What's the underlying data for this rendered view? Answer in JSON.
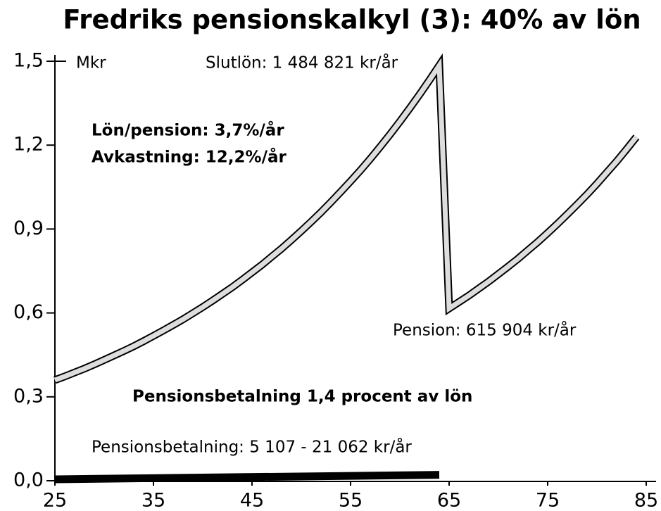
{
  "chart_data": {
    "type": "line",
    "title": "Fredriks pensionskalkyl (3): 40% av lön",
    "y_unit": "Mkr",
    "xlim": [
      25,
      85
    ],
    "xticks": [
      25,
      35,
      45,
      55,
      65,
      75,
      85
    ],
    "ylim": [
      0,
      1.5
    ],
    "yticks": [
      {
        "value": 0,
        "label": "0,0"
      },
      {
        "value": 0.3,
        "label": "0,3"
      },
      {
        "value": 0.6,
        "label": "0,6"
      },
      {
        "value": 0.9,
        "label": "0,9"
      },
      {
        "value": 1.2,
        "label": "1,2"
      },
      {
        "value": 1.5,
        "label": "1,5"
      }
    ],
    "series": [
      {
        "name": "Lön/pension",
        "color": "#dddddd",
        "x": [
          25,
          26,
          27,
          28,
          29,
          30,
          31,
          32,
          33,
          34,
          35,
          36,
          37,
          38,
          39,
          40,
          41,
          42,
          43,
          44,
          45,
          46,
          47,
          48,
          49,
          50,
          51,
          52,
          53,
          54,
          55,
          56,
          57,
          58,
          59,
          60,
          61,
          62,
          63,
          64,
          65,
          66,
          67,
          68,
          69,
          70,
          71,
          72,
          73,
          74,
          75,
          76,
          77,
          78,
          79,
          80,
          81,
          82,
          83,
          84
        ],
        "values": [
          0.36,
          0.373,
          0.387,
          0.401,
          0.416,
          0.432,
          0.448,
          0.464,
          0.481,
          0.499,
          0.518,
          0.537,
          0.557,
          0.577,
          0.599,
          0.621,
          0.644,
          0.668,
          0.692,
          0.718,
          0.745,
          0.772,
          0.801,
          0.83,
          0.861,
          0.893,
          0.926,
          0.96,
          0.996,
          1.033,
          1.071,
          1.11,
          1.151,
          1.194,
          1.238,
          1.284,
          1.332,
          1.381,
          1.432,
          1.485,
          0.616,
          0.639,
          0.662,
          0.687,
          0.712,
          0.739,
          0.766,
          0.794,
          0.824,
          0.854,
          0.886,
          0.919,
          0.953,
          0.988,
          1.024,
          1.062,
          1.102,
          1.142,
          1.185,
          1.229
        ]
      },
      {
        "name": "Pensionsbetalning",
        "color": "#000000",
        "x": [
          25,
          64
        ],
        "values": [
          0.005107,
          0.021062
        ]
      }
    ],
    "annotations": [
      "Slutlön: 1 484 821 kr/år",
      "Lön/pension: 3,7%/år",
      "Avkastning: 12,2%/år",
      "Pension: 615 904 kr/år",
      "Pensionsbetalning 1,4 procent av lön",
      "Pensionsbetalning: 5 107 - 21 062 kr/år"
    ]
  }
}
